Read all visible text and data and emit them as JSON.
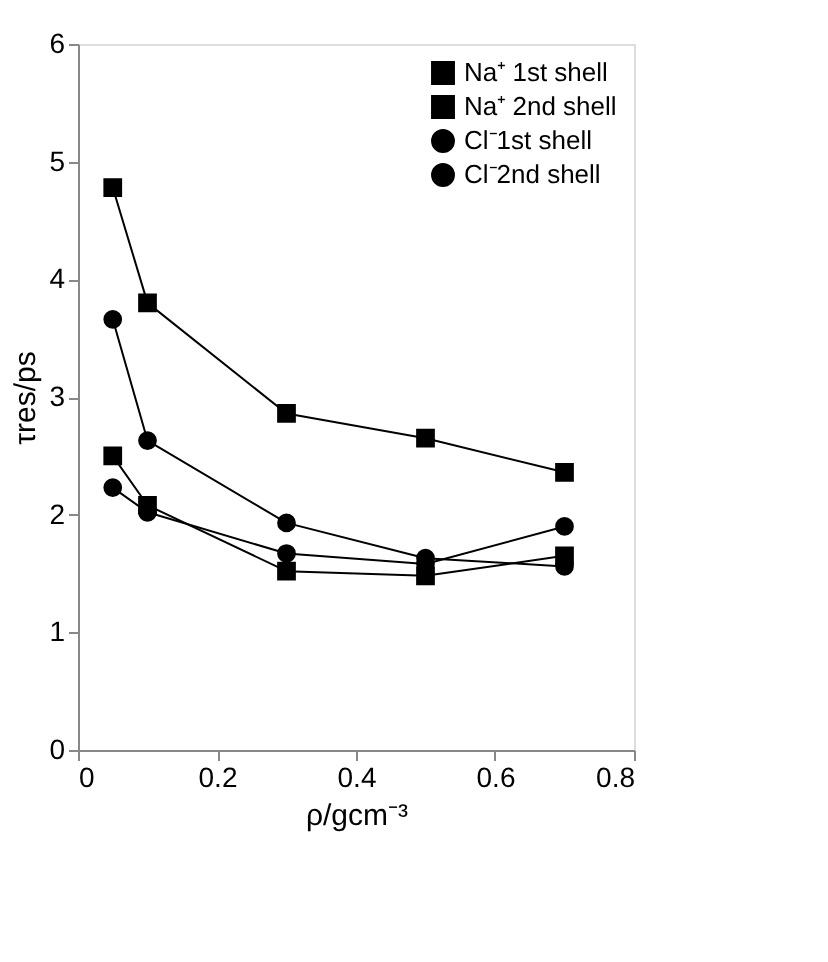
{
  "chart_data": {
    "type": "line",
    "xlabel": "ρ/gcm⁻³",
    "ylabel": "τres/ps",
    "x": [
      0.05,
      0.1,
      0.3,
      0.5,
      0.7
    ],
    "series": [
      {
        "name": "Na⁺ 1st shell",
        "color": "#000000",
        "marker": "square",
        "values": [
          4.78,
          3.8,
          2.86,
          2.65,
          2.36
        ]
      },
      {
        "name": "Na⁺ 2nd shell",
        "color": "#000000",
        "marker": "square",
        "values": [
          2.5,
          2.08,
          1.52,
          1.48,
          1.65
        ]
      },
      {
        "name": "Cl⁻1st shell",
        "color": "#000000",
        "marker": "circle",
        "values": [
          3.66,
          2.63,
          1.93,
          1.63,
          1.56
        ]
      },
      {
        "name": "Cl⁻2nd shell",
        "color": "#000000",
        "marker": "circle",
        "values": [
          2.23,
          2.02,
          1.67,
          1.58,
          1.9
        ]
      }
    ],
    "xlim": [
      0,
      0.8
    ],
    "xticks": [
      0,
      0.2,
      0.4,
      0.6,
      0.8
    ],
    "ylim": [
      0,
      6
    ],
    "yticks": [
      0,
      1,
      2,
      3,
      4,
      5,
      6
    ],
    "grid": false,
    "legend": "top right",
    "line_style": "solid"
  }
}
